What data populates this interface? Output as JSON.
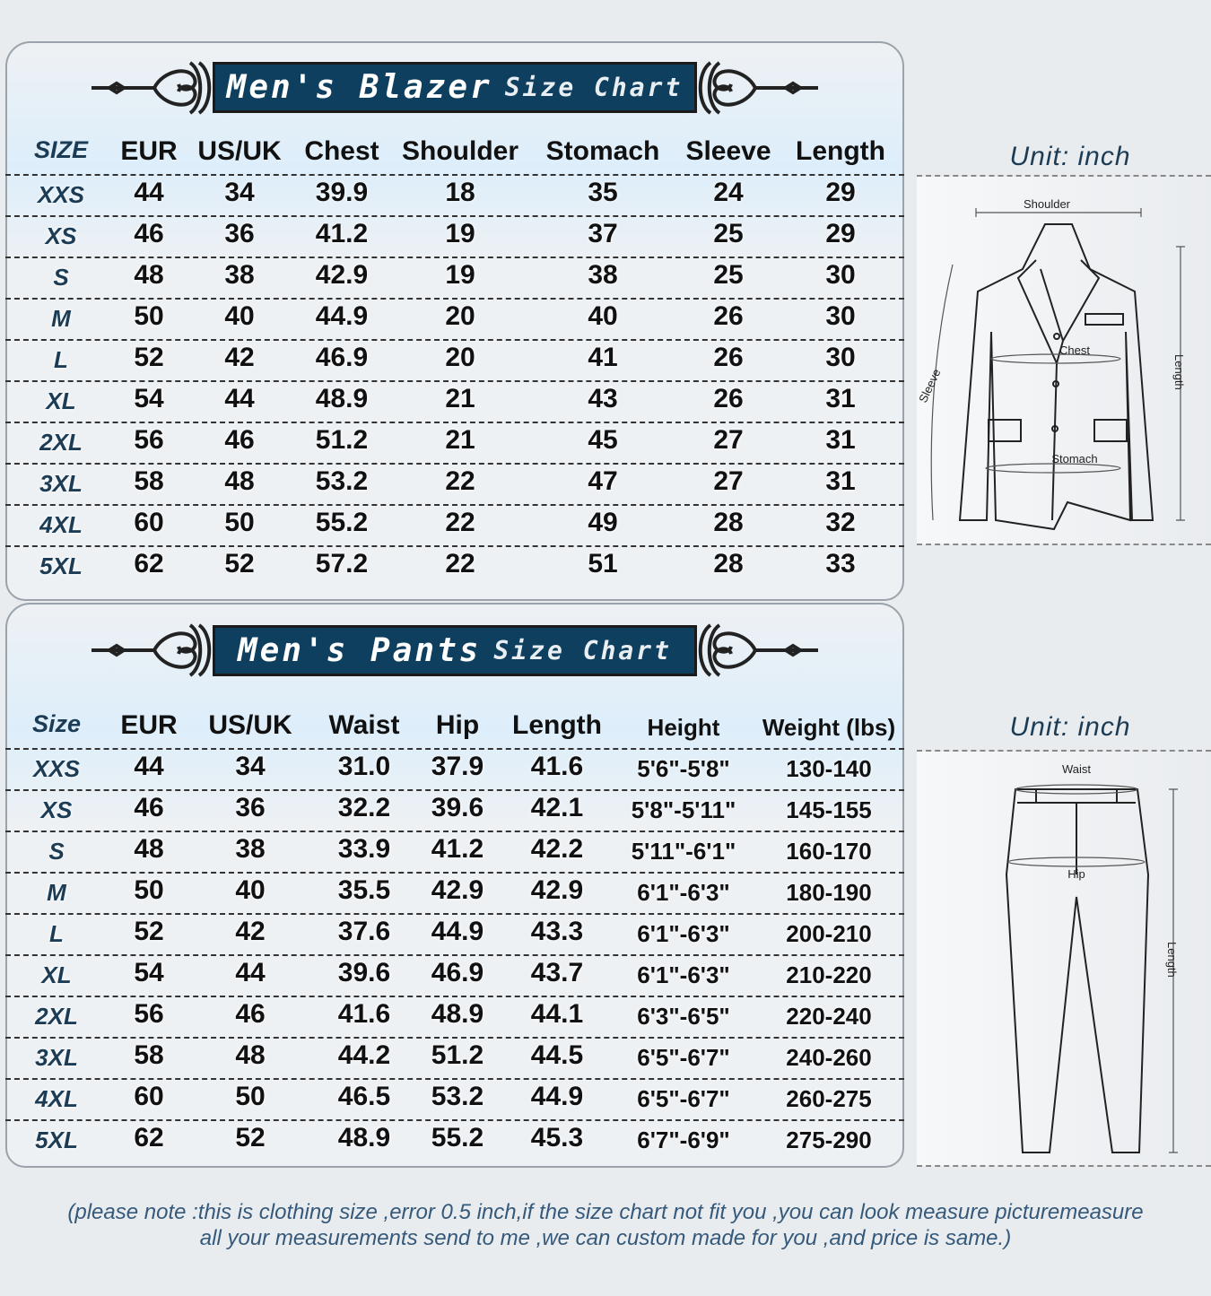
{
  "blazer": {
    "title_main": "Men's Blazer",
    "title_sub": "Size Chart",
    "headers": [
      "SIZE",
      "EUR",
      "US/UK",
      "Chest",
      "Shoulder",
      "Stomach",
      "Sleeve",
      "Length"
    ],
    "rows": [
      [
        "XXS",
        "44",
        "34",
        "39.9",
        "18",
        "35",
        "24",
        "29"
      ],
      [
        "XS",
        "46",
        "36",
        "41.2",
        "19",
        "37",
        "25",
        "29"
      ],
      [
        "S",
        "48",
        "38",
        "42.9",
        "19",
        "38",
        "25",
        "30"
      ],
      [
        "M",
        "50",
        "40",
        "44.9",
        "20",
        "40",
        "26",
        "30"
      ],
      [
        "L",
        "52",
        "42",
        "46.9",
        "20",
        "41",
        "26",
        "30"
      ],
      [
        "XL",
        "54",
        "44",
        "48.9",
        "21",
        "43",
        "26",
        "31"
      ],
      [
        "2XL",
        "56",
        "46",
        "51.2",
        "21",
        "45",
        "27",
        "31"
      ],
      [
        "3XL",
        "58",
        "48",
        "53.2",
        "22",
        "47",
        "27",
        "31"
      ],
      [
        "4XL",
        "60",
        "50",
        "55.2",
        "22",
        "49",
        "28",
        "32"
      ],
      [
        "5XL",
        "62",
        "52",
        "57.2",
        "22",
        "51",
        "28",
        "33"
      ]
    ],
    "unit": "Unit: inch",
    "diagram_labels": {
      "shoulder": "Shoulder",
      "chest": "Chest",
      "stomach": "Stomach",
      "sleeve": "Sleeve",
      "length": "Length"
    }
  },
  "pants": {
    "title_main": "Men's Pants",
    "title_sub": "Size Chart",
    "headers": [
      "Size",
      "EUR",
      "US/UK",
      "Waist",
      "Hip",
      "Length",
      "Height",
      "Weight (lbs)"
    ],
    "rows": [
      [
        "XXS",
        "44",
        "34",
        "31.0",
        "37.9",
        "41.6",
        "5'6\"-5'8\"",
        "130-140"
      ],
      [
        "XS",
        "46",
        "36",
        "32.2",
        "39.6",
        "42.1",
        "5'8\"-5'11\"",
        "145-155"
      ],
      [
        "S",
        "48",
        "38",
        "33.9",
        "41.2",
        "42.2",
        "5'11\"-6'1\"",
        "160-170"
      ],
      [
        "M",
        "50",
        "40",
        "35.5",
        "42.9",
        "42.9",
        "6'1\"-6'3\"",
        "180-190"
      ],
      [
        "L",
        "52",
        "42",
        "37.6",
        "44.9",
        "43.3",
        "6'1\"-6'3\"",
        "200-210"
      ],
      [
        "XL",
        "54",
        "44",
        "39.6",
        "46.9",
        "43.7",
        "6'1\"-6'3\"",
        "210-220"
      ],
      [
        "2XL",
        "56",
        "46",
        "41.6",
        "48.9",
        "44.1",
        "6'3\"-6'5\"",
        "220-240"
      ],
      [
        "3XL",
        "58",
        "48",
        "44.2",
        "51.2",
        "44.5",
        "6'5\"-6'7\"",
        "240-260"
      ],
      [
        "4XL",
        "60",
        "50",
        "46.5",
        "53.2",
        "44.9",
        "6'5\"-6'7\"",
        "260-275"
      ],
      [
        "5XL",
        "62",
        "52",
        "48.9",
        "55.2",
        "45.3",
        "6'7\"-6'9\"",
        "275-290"
      ]
    ],
    "unit": "Unit: inch",
    "diagram_labels": {
      "waist": "Waist",
      "hip": "Hip",
      "length": "Length"
    }
  },
  "note": {
    "line1": "(please note :this is clothing size ,error 0.5 inch,if the size chart not fit you ,you can look measure picturemeasure",
    "line2": "all your measurements send to me ,we can custom made for you ,and price is same.)"
  },
  "colors": {
    "banner": "#0e3f5e",
    "size_label": "#1c3c55",
    "background": "#e9ecef"
  }
}
